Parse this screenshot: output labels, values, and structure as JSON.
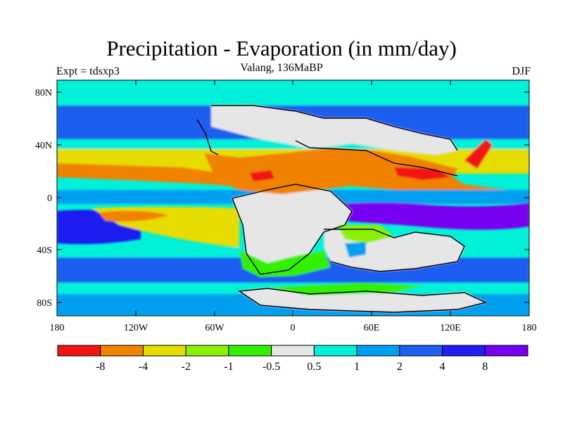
{
  "title": "Precipitation - Evaporation (in mm/day)",
  "subtitle": "Valang, 136MaBP",
  "left_label": "Expt = tdsxp3",
  "right_label": "DJF",
  "map": {
    "lat_ticks": [
      "80N",
      "40N",
      "0",
      "40S",
      "80S"
    ],
    "lon_ticks": [
      "180",
      "120W",
      "60W",
      "0",
      "60E",
      "120E",
      "180"
    ],
    "colors": {
      "ocean_wet": "#1e5ff0",
      "ocean_teal": "#00f0d8",
      "ocean_light_blue": "#00a0f0",
      "land_grey": "#e6e6e6",
      "dry_orange": "#f08200",
      "dry_yellow": "#e6dc00",
      "dry_lightgreen": "#8cf000",
      "green": "#32f000",
      "deep_blue": "#1e1ef0",
      "purple": "#7800f0",
      "red": "#f01414"
    }
  },
  "colorbar": {
    "colors": [
      "#f01414",
      "#f08200",
      "#e6dc00",
      "#8cf000",
      "#32f000",
      "#e6e6e6",
      "#00f0d8",
      "#00a0f0",
      "#1e5ff0",
      "#1e1ef0",
      "#7800f0"
    ],
    "labels": [
      "-8",
      "-4",
      "-2",
      "-1",
      "-0.5",
      "0.5",
      "1",
      "2",
      "4",
      "8"
    ]
  }
}
